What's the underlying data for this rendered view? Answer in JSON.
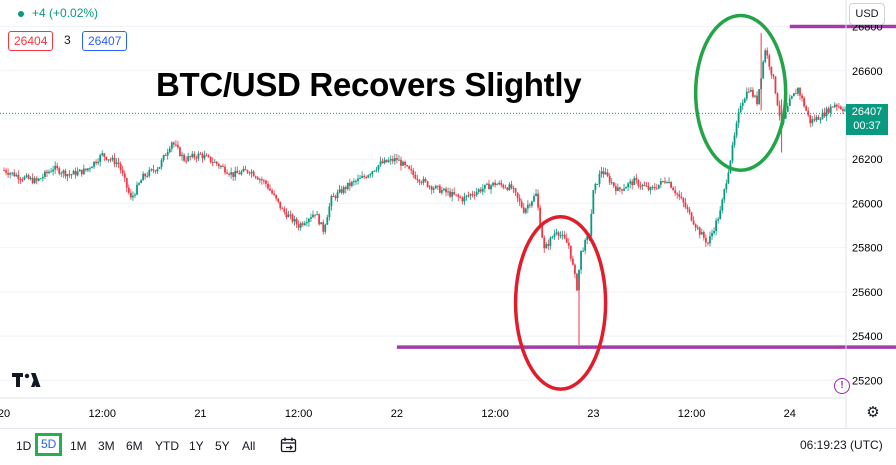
{
  "header": {
    "change": "+4 (+0.02%)",
    "bid": "26404",
    "spread": "3",
    "ask": "26407",
    "currency": "USD"
  },
  "title": "BTC/USD Recovers Slightly",
  "current_price": {
    "price": "26407",
    "countdown": "00:37",
    "value": 26407,
    "color": "#089981"
  },
  "toolbar": {
    "ranges": [
      "1D",
      "5D",
      "1M",
      "3M",
      "6M",
      "YTD",
      "1Y",
      "5Y",
      "All"
    ],
    "active_range": "5D",
    "clock": "06:19:23 (UTC)"
  },
  "colors": {
    "up": "#089981",
    "down": "#f23645",
    "level": "#a23ba8",
    "circle_red": "#e11d2b",
    "circle_green": "#22a447"
  },
  "icons": {
    "logo": "tradingview-logo-icon",
    "alert": "alert-icon",
    "settings": "gear-icon",
    "calendar": "date-range-icon"
  },
  "chart_data": {
    "type": "candlestick",
    "title": "BTC/USD Recovers Slightly",
    "y_axis": {
      "ticks": [
        25200,
        25400,
        25600,
        25800,
        26000,
        26200,
        26400,
        26600,
        26800
      ],
      "range": [
        25120,
        26920
      ],
      "position": "right"
    },
    "x_axis": {
      "tick_labels": [
        "20",
        "12:00",
        "21",
        "12:00",
        "22",
        "12:00",
        "23",
        "12:00",
        "24"
      ],
      "range": [
        "20 00:00",
        "24 12:00"
      ]
    },
    "horizontal_levels": [
      {
        "value": 26800,
        "from": "24 00:00",
        "to": "24 19:00"
      },
      {
        "value": 25350,
        "from": "22 00:00",
        "to": "24 19:00"
      }
    ],
    "highlights": [
      {
        "shape": "ellipse",
        "color": "red",
        "center_time": "22 20:00",
        "center_price": 25550,
        "time_radius_h": 5.5,
        "price_radius": 390
      },
      {
        "shape": "ellipse",
        "color": "green",
        "center_time": "23 18:00",
        "center_price": 26500,
        "time_radius_h": 5.5,
        "price_radius": 350
      }
    ],
    "series_path": [
      {
        "t": "20 00:00",
        "p": 26150
      },
      {
        "t": "20 02:00",
        "p": 26120
      },
      {
        "t": "20 04:00",
        "p": 26100
      },
      {
        "t": "20 06:00",
        "p": 26160
      },
      {
        "t": "20 08:00",
        "p": 26130
      },
      {
        "t": "20 10:00",
        "p": 26150
      },
      {
        "t": "20 12:00",
        "p": 26220
      },
      {
        "t": "20 14:00",
        "p": 26180
      },
      {
        "t": "20 15:30",
        "p": 26020
      },
      {
        "t": "20 17:00",
        "p": 26120
      },
      {
        "t": "20 19:00",
        "p": 26170
      },
      {
        "t": "20 20:30",
        "p": 26280
      },
      {
        "t": "20 22:00",
        "p": 26200
      },
      {
        "t": "21 00:00",
        "p": 26220
      },
      {
        "t": "21 02:00",
        "p": 26180
      },
      {
        "t": "21 04:00",
        "p": 26130
      },
      {
        "t": "21 06:00",
        "p": 26150
      },
      {
        "t": "21 08:00",
        "p": 26090
      },
      {
        "t": "21 10:00",
        "p": 25970
      },
      {
        "t": "21 12:00",
        "p": 25900
      },
      {
        "t": "21 14:00",
        "p": 25960
      },
      {
        "t": "21 15:00",
        "p": 25880
      },
      {
        "t": "21 16:00",
        "p": 26020
      },
      {
        "t": "21 18:00",
        "p": 26080
      },
      {
        "t": "21 20:00",
        "p": 26120
      },
      {
        "t": "21 22:00",
        "p": 26180
      },
      {
        "t": "22 00:00",
        "p": 26200
      },
      {
        "t": "22 02:00",
        "p": 26130
      },
      {
        "t": "22 04:00",
        "p": 26080
      },
      {
        "t": "22 06:00",
        "p": 26050
      },
      {
        "t": "22 08:00",
        "p": 26020
      },
      {
        "t": "22 10:00",
        "p": 26060
      },
      {
        "t": "22 12:00",
        "p": 26090
      },
      {
        "t": "22 14:00",
        "p": 26070
      },
      {
        "t": "22 15:30",
        "p": 25970
      },
      {
        "t": "22 17:00",
        "p": 26040
      },
      {
        "t": "22 18:00",
        "p": 25790
      },
      {
        "t": "22 19:30",
        "p": 25880
      },
      {
        "t": "22 21:00",
        "p": 25810
      },
      {
        "t": "22 22:00",
        "p": 25620
      },
      {
        "t": "22 22:30",
        "p": 25780
      },
      {
        "t": "22 23:30",
        "p": 25860
      },
      {
        "t": "23 00:00",
        "p": 26050
      },
      {
        "t": "23 01:00",
        "p": 26150
      },
      {
        "t": "23 03:00",
        "p": 26060
      },
      {
        "t": "23 05:00",
        "p": 26100
      },
      {
        "t": "23 07:00",
        "p": 26060
      },
      {
        "t": "23 09:00",
        "p": 26110
      },
      {
        "t": "23 11:00",
        "p": 26000
      },
      {
        "t": "23 13:00",
        "p": 25870
      },
      {
        "t": "23 14:00",
        "p": 25820
      },
      {
        "t": "23 15:30",
        "p": 25960
      },
      {
        "t": "23 17:00",
        "p": 26250
      },
      {
        "t": "23 18:00",
        "p": 26450
      },
      {
        "t": "23 19:00",
        "p": 26520
      },
      {
        "t": "23 20:00",
        "p": 26460
      },
      {
        "t": "23 21:00",
        "p": 26700
      },
      {
        "t": "23 22:00",
        "p": 26560
      },
      {
        "t": "23 23:00",
        "p": 26350
      },
      {
        "t": "24 00:00",
        "p": 26460
      },
      {
        "t": "24 01:00",
        "p": 26520
      },
      {
        "t": "24 02:30",
        "p": 26370
      },
      {
        "t": "24 04:00",
        "p": 26400
      },
      {
        "t": "24 05:30",
        "p": 26450
      },
      {
        "t": "24 07:00",
        "p": 26420
      },
      {
        "t": "24 08:00",
        "p": 26407
      }
    ],
    "spikes": [
      {
        "t": "22 22:15",
        "low": 25360,
        "high": 25660
      },
      {
        "t": "23 23:00",
        "low": 26230,
        "high": 26470
      },
      {
        "t": "23 20:30",
        "low": 26420,
        "high": 26770
      }
    ]
  }
}
